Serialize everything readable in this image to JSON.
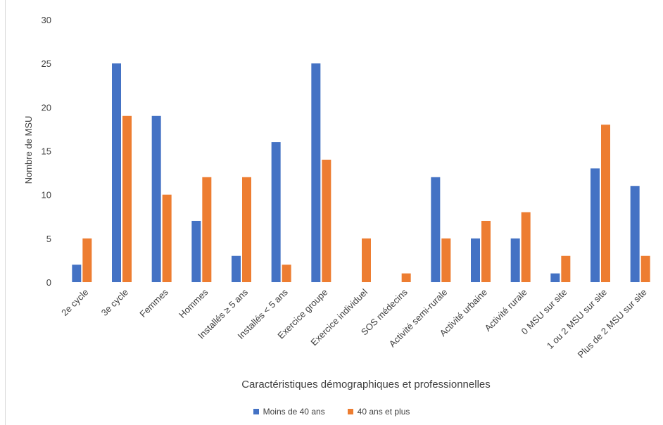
{
  "chart_data": {
    "type": "bar",
    "title": "",
    "xlabel": "Caractéristiques démographiques et professionnelles",
    "ylabel": "Nombre de MSU",
    "ylim": [
      0,
      30
    ],
    "yticks": [
      0,
      5,
      10,
      15,
      20,
      25,
      30
    ],
    "grid": false,
    "legend_position": "bottom",
    "categories": [
      "2e cycle",
      "3e cycle",
      "Femmes",
      "Hommes",
      "Installés ≥ 5 ans",
      "Installés < 5 ans",
      "Exercice groupe",
      "Exercice individuel",
      "SOS médecins",
      "Activité semi-rurale",
      "Activité urbaine",
      "Activité rurale",
      "0 MSU sur site",
      "1 ou 2 MSU sur site",
      "Plus de 2 MSU sur site"
    ],
    "series": [
      {
        "name": "Moins de 40 ans",
        "color": "#4472C4",
        "values": [
          2,
          25,
          19,
          7,
          3,
          16,
          25,
          0,
          0,
          12,
          5,
          5,
          1,
          13,
          11
        ]
      },
      {
        "name": "40 ans et plus",
        "color": "#ED7D31",
        "values": [
          5,
          19,
          10,
          12,
          12,
          2,
          14,
          5,
          1,
          5,
          7,
          8,
          3,
          18,
          3
        ]
      }
    ]
  }
}
